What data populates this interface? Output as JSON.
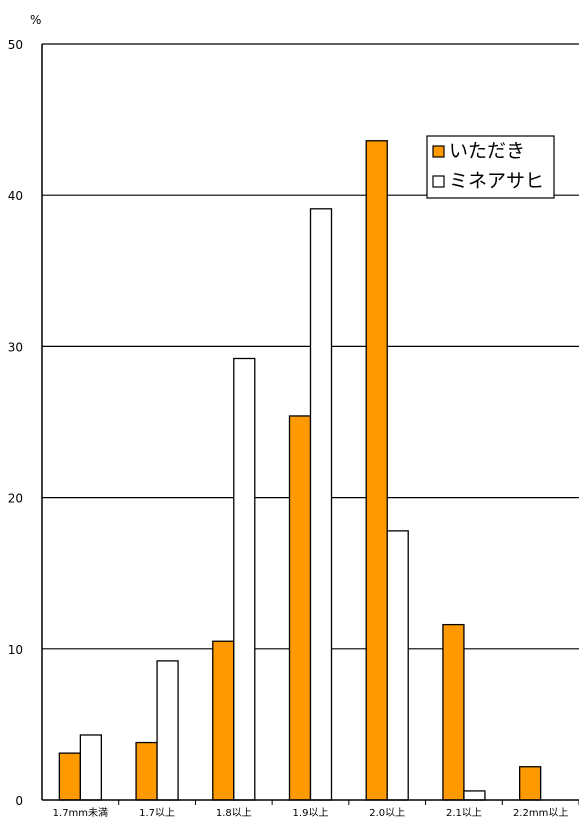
{
  "chart_data": {
    "type": "bar",
    "ylabel": "%",
    "ylim": [
      0,
      50
    ],
    "yticks": [
      "0",
      "10",
      "20",
      "30",
      "40",
      "50"
    ],
    "grid": true,
    "legend_position": "top-right",
    "categories": [
      "1.7mm未満",
      "1.7以上",
      "1.8以上",
      "1.9以上",
      "2.0以上",
      "2.1以上",
      "2.2mm以上"
    ],
    "series": [
      {
        "name": "いただき",
        "color": "#ff9900",
        "values": [
          3.1,
          3.8,
          10.5,
          25.4,
          43.6,
          11.6,
          2.2
        ]
      },
      {
        "name": "ミネアサヒ",
        "color": "#ffffff",
        "values": [
          4.3,
          9.2,
          29.2,
          39.1,
          17.8,
          0.6,
          0
        ]
      }
    ]
  }
}
